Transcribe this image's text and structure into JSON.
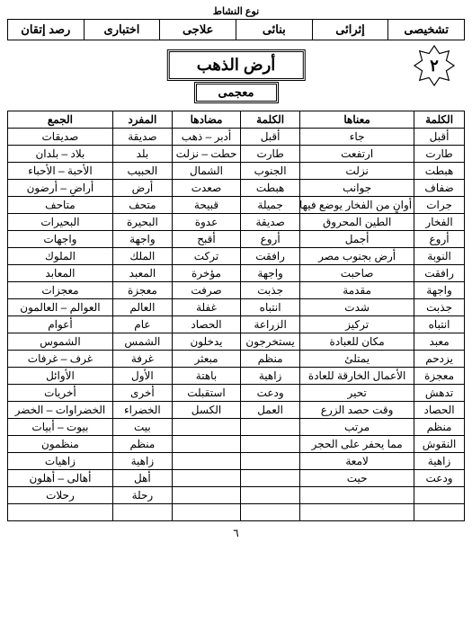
{
  "topLabel": "نوع النشاط",
  "types": [
    "تشخيصى",
    "إثرائى",
    "بنائى",
    "علاجى",
    "اختبارى",
    "رصد إتقان"
  ],
  "lessonTitle": "أرض الذهب",
  "subTitle": "معجمى",
  "lessonNumber": "٢",
  "headers": [
    "الكلمة",
    "معناها",
    "الكلمة",
    "مضادها",
    "المفرد",
    "الجمع"
  ],
  "rows": [
    [
      "أقبل",
      "جاء",
      "أقبل",
      "أدبر – ذهب",
      "صديقة",
      "صديقات"
    ],
    [
      "طارت",
      "ارتفعت",
      "طارت",
      "حطت – نزلت",
      "بلد",
      "بلاد – بلدان"
    ],
    [
      "هبطت",
      "نزلت",
      "الجنوب",
      "الشمال",
      "الحبيب",
      "الأحبة – الأحباء"
    ],
    [
      "ضفاف",
      "جوانب",
      "هبطت",
      "صعدت",
      "أرض",
      "أراضٍ – أرضون"
    ],
    [
      "جرات",
      "أوانٍ من الفخار يوضع فيها الماء",
      "جميلة",
      "قبيحة",
      "متحف",
      "متاحف"
    ],
    [
      "الفخار",
      "الطين المحروق",
      "صديقة",
      "عدوة",
      "البحيرة",
      "البحيرات"
    ],
    [
      "أروع",
      "أجمل",
      "أروع",
      "أقبح",
      "واجهة",
      "واجهات"
    ],
    [
      "النوبة",
      "أرض بجنوب مصر",
      "رافقت",
      "تركت",
      "الملك",
      "الملوك"
    ],
    [
      "رافقت",
      "صاحبت",
      "واجهة",
      "مؤخرة",
      "المعبد",
      "المعابد"
    ],
    [
      "واجهة",
      "مقدمة",
      "جذبت",
      "صرفت",
      "معجزة",
      "معجزات"
    ],
    [
      "جذبت",
      "شدت",
      "انتباه",
      "غفلة",
      "العالم",
      "العوالم – العالمون"
    ],
    [
      "انتباه",
      "تركيز",
      "الزراعة",
      "الحصاد",
      "عام",
      "أعوام"
    ],
    [
      "معبد",
      "مكان للعبادة",
      "يستخرجون",
      "يدخلون",
      "الشمس",
      "الشموس"
    ],
    [
      "يزدحم",
      "يمتلئ",
      "منظم",
      "مبعثر",
      "غرفة",
      "غرف – غرفات"
    ],
    [
      "معجزة",
      "الأعمال الخارقة للعادة",
      "زاهية",
      "باهتة",
      "الأول",
      "الأوائل"
    ],
    [
      "تدهش",
      "تحير",
      "ودعت",
      "استقبلت",
      "أخرى",
      "أخريات"
    ],
    [
      "الحصاد",
      "وقت حصد الزرع",
      "العمل",
      "الكسل",
      "الخضراء",
      "الخضراوات – الخضر"
    ],
    [
      "منظم",
      "مرتب",
      "",
      "",
      "بيت",
      "بيوت – أبيات"
    ],
    [
      "النقوش",
      "مما يحفر على الحجر",
      "",
      "",
      "منظم",
      "منظمون"
    ],
    [
      "زاهية",
      "لامعة",
      "",
      "",
      "زاهية",
      "زاهيات"
    ],
    [
      "ودعت",
      "حيت",
      "",
      "",
      "أهل",
      "أهالى – أهلون"
    ],
    [
      "",
      "",
      "",
      "",
      "رحلة",
      "رحلات"
    ],
    [
      "",
      "",
      "",
      "",
      "",
      ""
    ]
  ],
  "pageNumber": "٦"
}
